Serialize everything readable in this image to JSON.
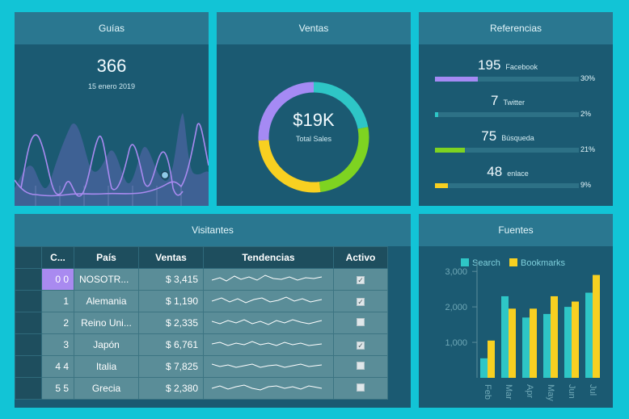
{
  "guias": {
    "title": "Guías",
    "value": "366",
    "date": "15 enero 2019"
  },
  "ventas": {
    "title": "Ventas",
    "value": "$19K",
    "label": "Total Sales",
    "segments": [
      {
        "color": "#2ec6c6",
        "fraction": 0.22
      },
      {
        "color": "#7ed321",
        "fraction": 0.26
      },
      {
        "color": "#f8d021",
        "fraction": 0.26
      },
      {
        "color": "#a58af4",
        "fraction": 0.26
      }
    ]
  },
  "referencias": {
    "title": "Referencias",
    "items": [
      {
        "count": "195",
        "name": "Facebook",
        "pct": "30%",
        "fraction": 0.3,
        "color": "#a58af4"
      },
      {
        "count": "7",
        "name": "Twitter",
        "pct": "2%",
        "fraction": 0.02,
        "color": "#2ec6c6"
      },
      {
        "count": "75",
        "name": "Búsqueda",
        "pct": "21%",
        "fraction": 0.21,
        "color": "#7ed321"
      },
      {
        "count": "48",
        "name": "enlace",
        "pct": "9%",
        "fraction": 0.09,
        "color": "#f8d021"
      }
    ]
  },
  "visitantes": {
    "title": "Visitantes",
    "columns": [
      "C...",
      "País",
      "Ventas",
      "Tendencias",
      "Activo"
    ],
    "rows": [
      {
        "code": "0 0",
        "pais": "NOSOTR...",
        "ventas": "$ 3,415",
        "activo": true
      },
      {
        "code": "1",
        "pais": "Alemania",
        "ventas": "$ 1,190",
        "activo": true
      },
      {
        "code": "2",
        "pais": "Reino Uni...",
        "ventas": "$ 2,335",
        "activo": false
      },
      {
        "code": "3",
        "pais": "Japón",
        "ventas": "$ 6,761",
        "activo": true
      },
      {
        "code": "4 4",
        "pais": "Italia",
        "ventas": "$ 7,825",
        "activo": false
      },
      {
        "code": "5 5",
        "pais": "Grecia",
        "ventas": "$ 2,380",
        "activo": false
      }
    ]
  },
  "fuentes": {
    "title": "Fuentes",
    "chart_data": {
      "type": "bar",
      "categories": [
        "Feb",
        "Mar",
        "Apr",
        "May",
        "Jun",
        "Jul"
      ],
      "series": [
        {
          "name": "Search",
          "color": "#2ec6c6",
          "values": [
            550,
            2300,
            1700,
            1800,
            2000,
            2400
          ]
        },
        {
          "name": "Bookmarks",
          "color": "#f8d021",
          "values": [
            1050,
            1950,
            1950,
            2300,
            2150,
            2900
          ]
        }
      ],
      "yticks": [
        "3,000",
        "2,000",
        "1,000"
      ],
      "ylim": [
        0,
        3300
      ],
      "legend": "top"
    }
  }
}
